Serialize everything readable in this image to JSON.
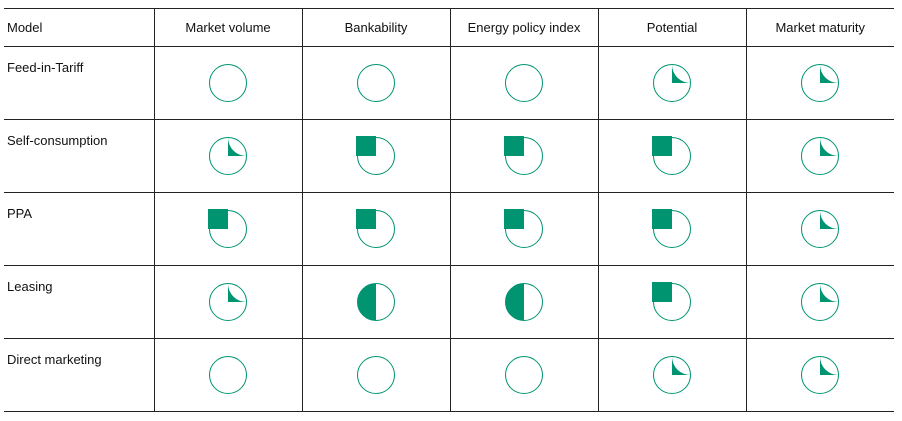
{
  "colors": {
    "fill": "#009471",
    "outline": "#009471",
    "background": "#ffffff",
    "rule": "#222222"
  },
  "chart_data": {
    "type": "table",
    "title": "",
    "header": {
      "model": "Model",
      "criteria": [
        "Market volume",
        "Bankability",
        "Energy policy index",
        "Potential",
        "Market maturity"
      ]
    },
    "rating_unit": "quarters filled (0-4)",
    "rows": [
      {
        "model": "Feed-in-Tariff",
        "ratings": [
          0,
          0,
          0,
          1,
          1
        ]
      },
      {
        "model": "Self-consumption",
        "ratings": [
          1,
          3,
          3,
          3,
          1
        ]
      },
      {
        "model": "PPA",
        "ratings": [
          3,
          3,
          3,
          3,
          1
        ]
      },
      {
        "model": "Leasing",
        "ratings": [
          1,
          2,
          2,
          3,
          1
        ]
      },
      {
        "model": "Direct marketing",
        "ratings": [
          0,
          0,
          0,
          1,
          1
        ]
      }
    ]
  }
}
